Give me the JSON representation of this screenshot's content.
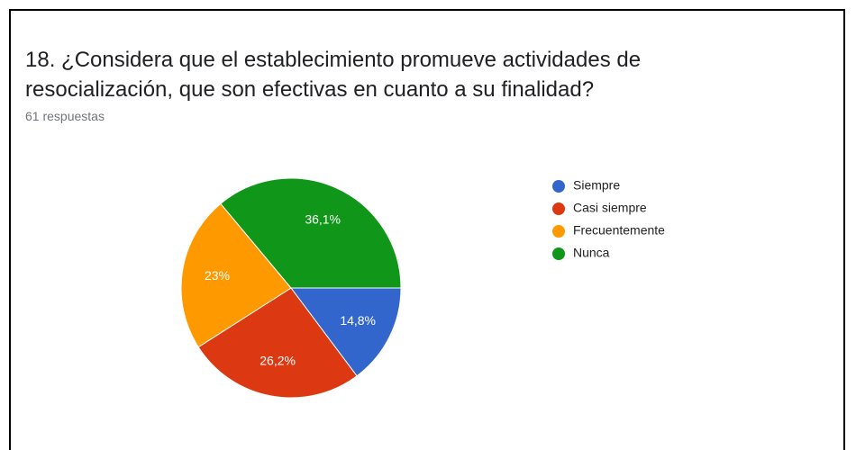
{
  "chart_data": {
    "type": "pie",
    "title": "18. ¿Considera que el establecimiento promueve actividades de resocialización, que son efectivas en cuanto a su finalidad?",
    "subtitle": "61 respuestas",
    "categories": [
      "Siempre",
      "Casi siempre",
      "Frecuentemente",
      "Nunca"
    ],
    "values": [
      14.8,
      26.2,
      23,
      36.1
    ],
    "value_labels": [
      "14,8%",
      "26,2%",
      "23%",
      "36,1%"
    ],
    "colors": [
      "#3366cc",
      "#dc3912",
      "#ff9900",
      "#109618"
    ],
    "legend": "right"
  }
}
